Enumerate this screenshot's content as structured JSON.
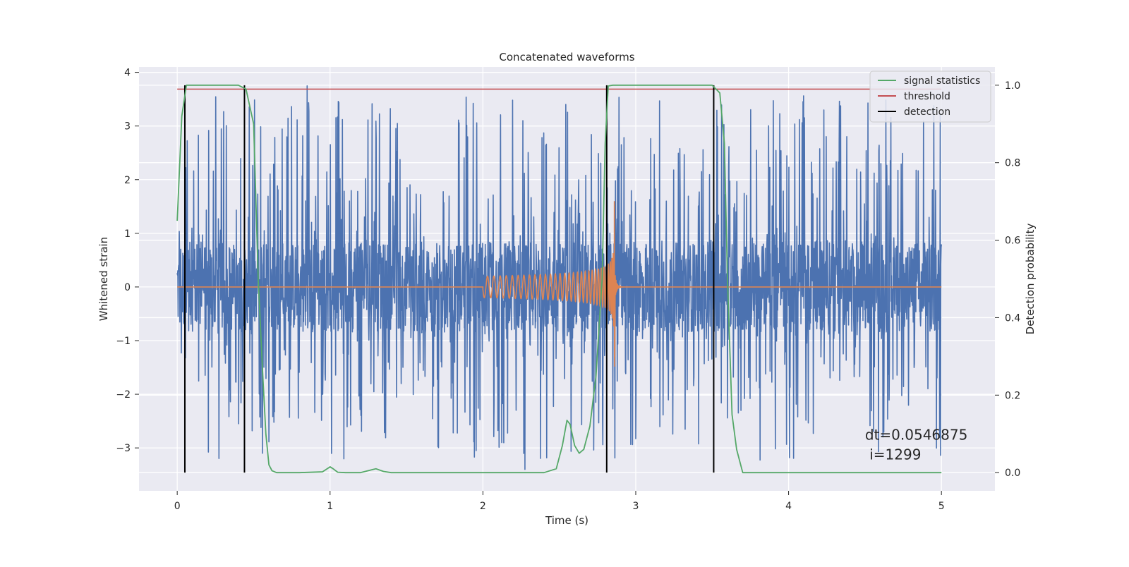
{
  "chart_data": {
    "type": "line",
    "title": "Concatenated waveforms",
    "xlabel": "Time (s)",
    "ylabel_left": "Whitened strain",
    "ylabel_right": "Detection probability",
    "xlim": [
      -0.25,
      5.35
    ],
    "ylim_left": [
      -3.8,
      4.1
    ],
    "ylim_right": [
      -0.047,
      1.047
    ],
    "x_ticks": [
      0,
      1,
      2,
      3,
      4,
      5
    ],
    "x_tick_labels": [
      "0",
      "1",
      "2",
      "3",
      "4",
      "5"
    ],
    "y_left_ticks": [
      -3,
      -2,
      -1,
      0,
      1,
      2,
      3,
      4
    ],
    "y_left_tick_labels": [
      "−3",
      "−2",
      "−1",
      "0",
      "1",
      "2",
      "3",
      "4"
    ],
    "y_right_ticks": [
      0.0,
      0.2,
      0.4,
      0.6,
      0.8,
      1.0
    ],
    "y_right_tick_labels": [
      "0.0",
      "0.2",
      "0.4",
      "0.6",
      "0.8",
      "1.0"
    ],
    "grid": true,
    "legend_position": "top-right",
    "series": [
      {
        "name": "signal statistics",
        "axis": "right",
        "color": "#55a868",
        "x": [
          0.0,
          0.03,
          0.06,
          0.1,
          0.2,
          0.3,
          0.4,
          0.45,
          0.5,
          0.53,
          0.56,
          0.58,
          0.6,
          0.62,
          0.65,
          0.8,
          0.95,
          1.0,
          1.02,
          1.05,
          1.1,
          1.2,
          1.28,
          1.3,
          1.35,
          1.4,
          1.6,
          1.8,
          2.0,
          2.2,
          2.4,
          2.48,
          2.52,
          2.55,
          2.57,
          2.6,
          2.63,
          2.66,
          2.7,
          2.74,
          2.78,
          2.8,
          2.82,
          2.85,
          2.9,
          3.0,
          3.2,
          3.4,
          3.5,
          3.55,
          3.58,
          3.6,
          3.63,
          3.66,
          3.7,
          3.9,
          4.2,
          4.5,
          4.8,
          5.0
        ],
        "y": [
          0.65,
          0.92,
          1.0,
          1.0,
          1.0,
          1.0,
          1.0,
          0.99,
          0.9,
          0.5,
          0.25,
          0.1,
          0.02,
          0.005,
          0.0,
          0.0,
          0.002,
          0.015,
          0.01,
          0.001,
          0.0,
          0.0,
          0.008,
          0.01,
          0.003,
          0.0,
          0.0,
          0.0,
          0.0,
          0.0,
          0.0,
          0.01,
          0.07,
          0.135,
          0.125,
          0.07,
          0.05,
          0.06,
          0.12,
          0.25,
          0.5,
          0.85,
          0.998,
          1.0,
          1.0,
          1.0,
          1.0,
          1.0,
          1.0,
          0.98,
          0.85,
          0.5,
          0.15,
          0.06,
          0.0,
          0.0,
          0.0,
          0.0,
          0.0,
          0.0
        ]
      },
      {
        "name": "threshold",
        "axis": "right",
        "color": "#c44e52",
        "x": [
          0.0,
          5.0
        ],
        "y": [
          0.99,
          0.99
        ]
      },
      {
        "name": "detection",
        "axis": "right",
        "color": "#000000",
        "x_positions": [
          0.05,
          0.44,
          2.81,
          3.51
        ],
        "y_range": [
          0.0,
          1.0
        ]
      },
      {
        "name": "",
        "axis": "left",
        "color": "#4c72b0",
        "description_range": [
          0.0,
          5.0
        ],
        "band_amplitude": 0.8,
        "peak_min": -3.4,
        "peak_max": 3.75
      },
      {
        "name": "",
        "axis": "left",
        "color": "#dd8452",
        "chirp_start": 2.0,
        "chirp_peak": 2.86,
        "peak_max": 1.6,
        "peak_min": -2.2
      }
    ],
    "annotation": {
      "line1": "dt=0.0546875",
      "line2": " i=1299",
      "x": 4.5,
      "y": -2.85
    }
  }
}
